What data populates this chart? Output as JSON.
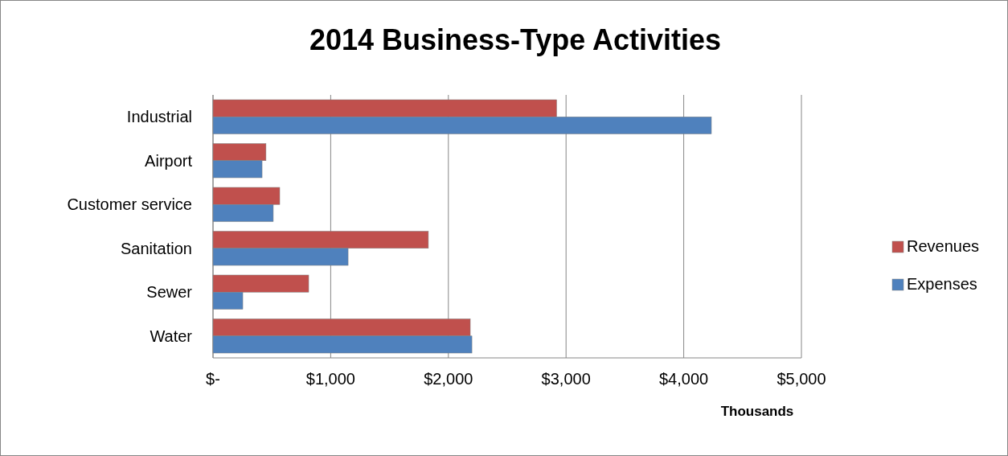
{
  "chart_data": {
    "type": "bar",
    "orientation": "horizontal",
    "title": "2014 Business-Type Activities",
    "xlabel": "Thousands",
    "categories": [
      "Industrial",
      "Airport",
      "Customer service",
      "Sanitation",
      "Sewer",
      "Water"
    ],
    "series": [
      {
        "name": "Revenues",
        "color": "#c0504d",
        "values": [
          2920,
          450,
          567,
          1830,
          813,
          2186
        ]
      },
      {
        "name": "Expenses",
        "color": "#4f81bd",
        "values": [
          4235,
          417,
          512,
          1148,
          253,
          2200
        ]
      }
    ],
    "xlim": [
      0,
      5000
    ],
    "xticks": [
      {
        "value": 0,
        "label": "$-"
      },
      {
        "value": 1000,
        "label": "$1,000"
      },
      {
        "value": 2000,
        "label": "$2,000"
      },
      {
        "value": 3000,
        "label": "$3,000"
      },
      {
        "value": 4000,
        "label": "$4,000"
      },
      {
        "value": 5000,
        "label": "$5,000"
      }
    ],
    "grid": "x",
    "legend": "right"
  }
}
